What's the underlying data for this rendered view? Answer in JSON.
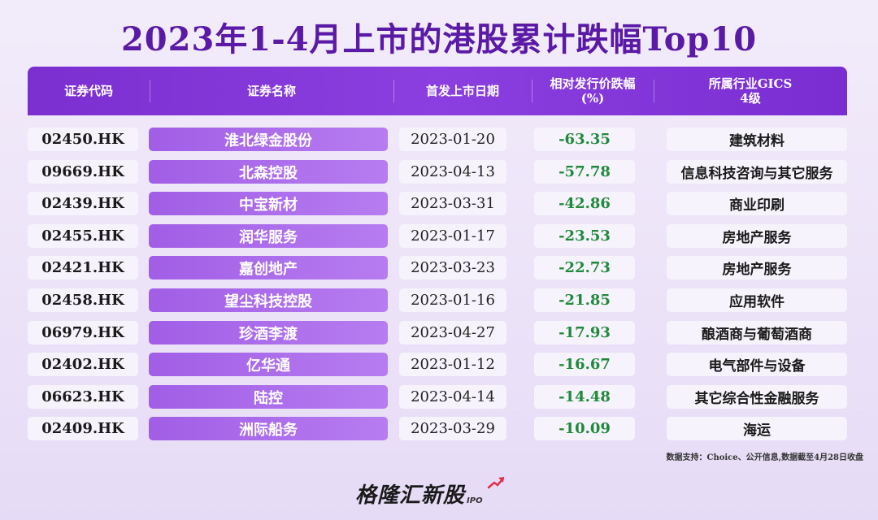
{
  "title": "2023年1-4月上市的港股累计跌幅Top10",
  "columns": {
    "code": "证券代码",
    "name": "证券名称",
    "date": "首发上市日期",
    "pct_line1": "相对发行价跌幅",
    "pct_line2": "(%)",
    "industry_line1": "所属行业GICS",
    "industry_line2": "4级"
  },
  "rows": [
    {
      "code": "02450.HK",
      "name": "淮北绿金股份",
      "date": "2023-01-20",
      "pct": "-63.35",
      "industry": "建筑材料"
    },
    {
      "code": "09669.HK",
      "name": "北森控股",
      "date": "2023-04-13",
      "pct": "-57.78",
      "industry": "信息科技咨询与其它服务"
    },
    {
      "code": "02439.HK",
      "name": "中宝新材",
      "date": "2023-03-31",
      "pct": "-42.86",
      "industry": "商业印刷"
    },
    {
      "code": "02455.HK",
      "name": "润华服务",
      "date": "2023-01-17",
      "pct": "-23.53",
      "industry": "房地产服务"
    },
    {
      "code": "02421.HK",
      "name": "嘉创地产",
      "date": "2023-03-23",
      "pct": "-22.73",
      "industry": "房地产服务"
    },
    {
      "code": "02458.HK",
      "name": "望尘科技控股",
      "date": "2023-01-16",
      "pct": "-21.85",
      "industry": "应用软件"
    },
    {
      "code": "06979.HK",
      "name": "珍酒李渡",
      "date": "2023-04-27",
      "pct": "-17.93",
      "industry": "酿酒商与葡萄酒商"
    },
    {
      "code": "02402.HK",
      "name": "亿华通",
      "date": "2023-01-12",
      "pct": "-16.67",
      "industry": "电气部件与设备"
    },
    {
      "code": "06623.HK",
      "name": "陆控",
      "date": "2023-04-14",
      "pct": "-14.48",
      "industry": "其它综合性金融服务"
    },
    {
      "code": "02409.HK",
      "name": "洲际船务",
      "date": "2023-03-29",
      "pct": "-10.09",
      "industry": "海运"
    }
  ],
  "source": "数据支持：Choice、公开信息,数据截至4月28日收盘",
  "logo": {
    "text": "格隆汇新股",
    "sub": "IPO",
    "icon": "rising-arrow-icon"
  },
  "colors": {
    "title": "#5a1aa6",
    "header": "#7b2fd0",
    "name_cell": "#a15ee6",
    "negative": "#1e8a3a"
  }
}
